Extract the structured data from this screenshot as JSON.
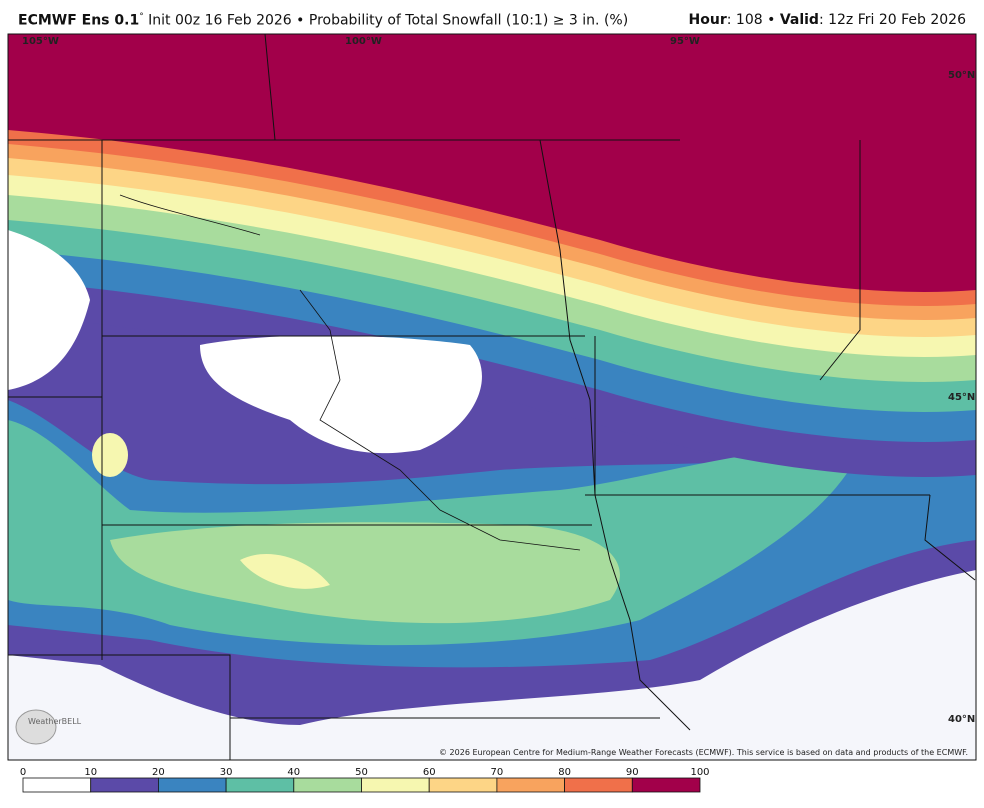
{
  "header": {
    "model": "ECMWF Ens 0.1",
    "degree": "°",
    "description": "Init 00z 16 Feb 2026 • Probability of Total Snowfall (10:1) ≥ 3 in. (%)",
    "hour_label": "Hour",
    "hour_value": ": 108 • ",
    "valid_label": "Valid",
    "valid_value": ": 12z Fri 20 Feb 2026"
  },
  "map": {
    "lon_labels": [
      "105°W",
      "100°W",
      "95°W"
    ],
    "lat_labels": [
      "50°N",
      "45°N",
      "40°N"
    ],
    "watermark": "WeatherBELL",
    "copyright": "© 2026 European Centre for Medium-Range Weather Forecasts (ECMWF). This service is based on data and products of the ECMWF."
  },
  "colorbar": {
    "ticks": [
      0,
      10,
      20,
      30,
      40,
      50,
      60,
      70,
      80,
      90,
      100
    ],
    "colors": [
      "#ffffff",
      "#5b4aa8",
      "#3a84c0",
      "#5ebfa5",
      "#a8dc9d",
      "#f6f7b0",
      "#fdd586",
      "#f8a35e",
      "#f0704a",
      "#a2004a"
    ]
  }
}
